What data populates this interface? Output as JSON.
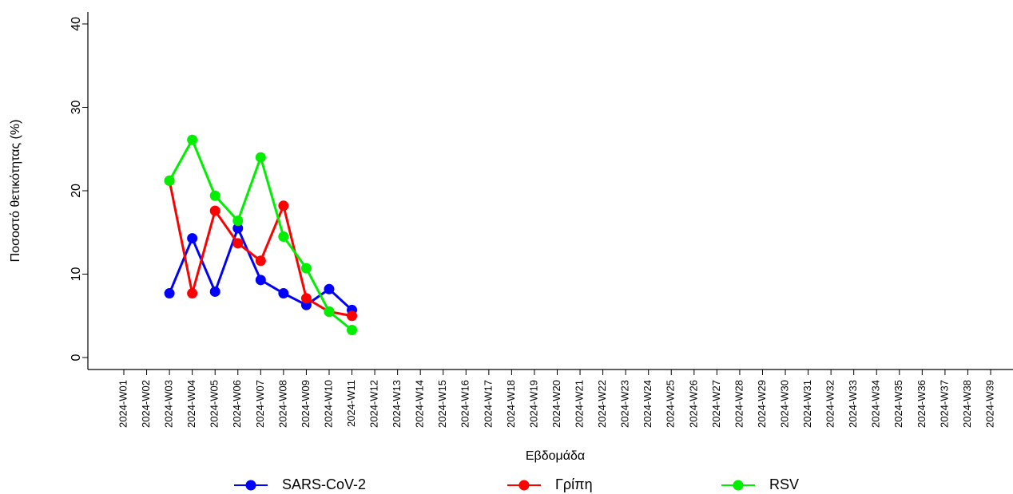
{
  "chart_data": {
    "type": "line",
    "y_label": "Ποσοστό θετικότητας (%)",
    "x_label": "Εβδομάδα",
    "categories": [
      "2024-W01",
      "2024-W02",
      "2024-W03",
      "2024-W04",
      "2024-W05",
      "2024-W06",
      "2024-W07",
      "2024-W08",
      "2024-W09",
      "2024-W10",
      "2024-W11",
      "2024-W12",
      "2024-W13",
      "2024-W14",
      "2024-W15",
      "2024-W16",
      "2024-W17",
      "2024-W18",
      "2024-W19",
      "2024-W20",
      "2024-W21",
      "2024-W22",
      "2024-W23",
      "2024-W24",
      "2024-W25",
      "2024-W26",
      "2024-W27",
      "2024-W28",
      "2024-W29",
      "2024-W30",
      "2024-W31",
      "2024-W32",
      "2024-W33",
      "2024-W34",
      "2024-W35",
      "2024-W36",
      "2024-W37",
      "2024-W38",
      "2024-W39"
    ],
    "series": [
      {
        "name": "SARS-CoV-2",
        "color": "#0000ff",
        "values": [
          null,
          null,
          7.7,
          14.3,
          7.9,
          15.5,
          9.3,
          7.7,
          6.3,
          8.2,
          5.7,
          null,
          null,
          null,
          null,
          null,
          null,
          null,
          null,
          null,
          null,
          null,
          null,
          null,
          null,
          null,
          null,
          null,
          null,
          null,
          null,
          null,
          null,
          null,
          null,
          null,
          null,
          null,
          null
        ]
      },
      {
        "name": "Γρίπη",
        "color": "#ff0000",
        "values": [
          null,
          null,
          21.2,
          7.7,
          17.6,
          13.7,
          11.6,
          18.2,
          7.1,
          5.5,
          5.0,
          null,
          null,
          null,
          null,
          null,
          null,
          null,
          null,
          null,
          null,
          null,
          null,
          null,
          null,
          null,
          null,
          null,
          null,
          null,
          null,
          null,
          null,
          null,
          null,
          null,
          null,
          null,
          null
        ]
      },
      {
        "name": "RSV",
        "color": "#00ee00",
        "values": [
          null,
          null,
          21.2,
          26.1,
          19.4,
          16.4,
          24.0,
          14.5,
          10.7,
          5.5,
          3.3,
          null,
          null,
          null,
          null,
          null,
          null,
          null,
          null,
          null,
          null,
          null,
          null,
          null,
          null,
          null,
          null,
          null,
          null,
          null,
          null,
          null,
          null,
          null,
          null,
          null,
          null,
          null,
          null
        ]
      }
    ],
    "ylim": [
      0,
      40
    ],
    "yticks": [
      0,
      10,
      20,
      30,
      40
    ]
  }
}
